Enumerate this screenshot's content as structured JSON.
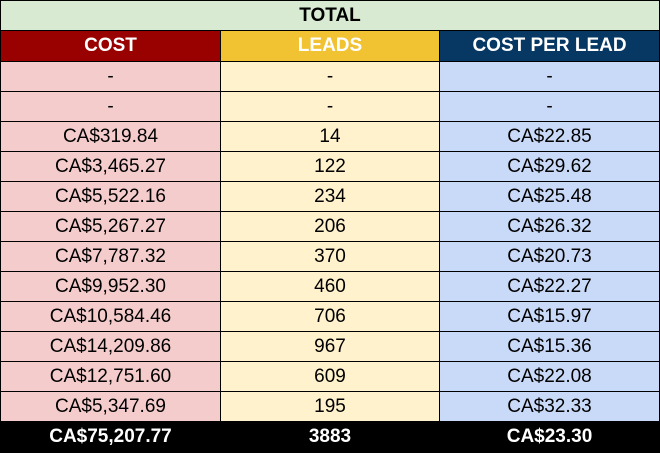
{
  "title": "TOTAL",
  "headers": {
    "cost": "COST",
    "leads": "LEADS",
    "cost_per_lead": "COST PER LEAD"
  },
  "colors": {
    "title_bg": "#d9ead3",
    "cost_header_bg": "#990000",
    "leads_header_bg": "#f1c232",
    "cpl_header_bg": "#073763",
    "cost_cell_bg": "#f4cccc",
    "leads_cell_bg": "#fff2cc",
    "cpl_cell_bg": "#c9daf8",
    "total_row_bg": "#000000"
  },
  "rows": [
    {
      "cost": "-",
      "leads": "-",
      "cpl": "-"
    },
    {
      "cost": "-",
      "leads": "-",
      "cpl": "-"
    },
    {
      "cost": "CA$319.84",
      "leads": "14",
      "cpl": "CA$22.85"
    },
    {
      "cost": "CA$3,465.27",
      "leads": "122",
      "cpl": "CA$29.62"
    },
    {
      "cost": "CA$5,522.16",
      "leads": "234",
      "cpl": "CA$25.48"
    },
    {
      "cost": "CA$5,267.27",
      "leads": "206",
      "cpl": "CA$26.32"
    },
    {
      "cost": "CA$7,787.32",
      "leads": "370",
      "cpl": "CA$20.73"
    },
    {
      "cost": "CA$9,952.30",
      "leads": "460",
      "cpl": "CA$22.27"
    },
    {
      "cost": "CA$10,584.46",
      "leads": "706",
      "cpl": "CA$15.97"
    },
    {
      "cost": "CA$14,209.86",
      "leads": "967",
      "cpl": "CA$15.36"
    },
    {
      "cost": "CA$12,751.60",
      "leads": "609",
      "cpl": "CA$22.08"
    },
    {
      "cost": "CA$5,347.69",
      "leads": "195",
      "cpl": "CA$32.33"
    }
  ],
  "total": {
    "cost": "CA$75,207.77",
    "leads": "3883",
    "cpl": "CA$23.30"
  }
}
